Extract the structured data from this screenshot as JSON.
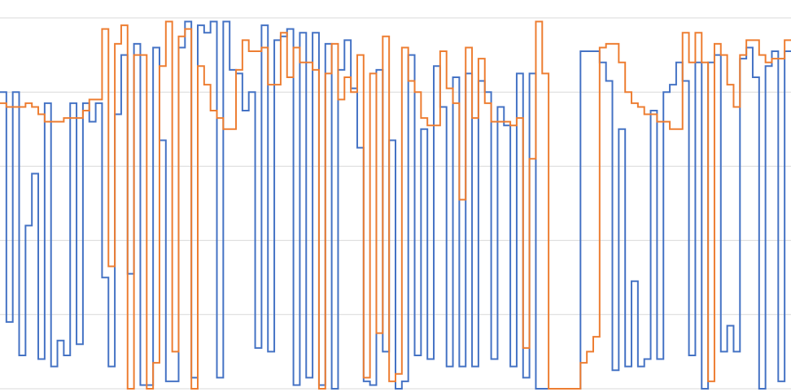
{
  "chart_data": {
    "type": "step",
    "ylim": [
      0,
      100
    ],
    "yticks": [
      0,
      20,
      40,
      60,
      80,
      100
    ],
    "grid": true,
    "y_tick_labels": false,
    "series": [
      {
        "color": "#4472c4",
        "values": [
          80,
          18,
          80,
          9,
          44,
          58,
          8,
          77,
          6,
          13,
          9,
          77,
          12,
          77,
          72,
          77,
          30,
          6,
          74,
          90,
          31,
          93,
          1,
          1,
          92,
          67,
          2,
          2,
          92,
          99,
          3,
          98,
          96,
          99,
          3,
          99,
          86,
          85,
          75,
          80,
          11,
          98,
          10,
          94,
          95,
          97,
          1,
          96,
          3,
          96,
          1,
          93,
          0,
          86,
          94,
          81,
          65,
          2,
          1,
          86,
          10,
          67,
          0,
          2,
          90,
          9,
          70,
          8,
          87,
          76,
          6,
          84,
          6,
          85,
          6,
          83,
          80,
          8,
          76,
          71,
          6,
          85,
          3,
          85,
          0,
          0,
          0,
          0,
          0,
          0,
          0,
          91,
          91,
          91,
          88,
          83,
          5,
          70,
          6,
          29,
          6,
          8,
          75,
          8,
          80,
          82,
          88,
          83,
          9,
          88,
          0,
          88,
          90,
          10,
          17,
          10,
          89,
          92,
          84,
          0,
          87,
          91,
          2,
          91
        ]
      },
      {
        "color": "#ed7d31",
        "values": [
          77,
          76,
          76,
          76,
          77,
          76,
          74,
          72,
          72,
          72,
          73,
          73,
          73,
          75,
          78,
          78,
          97,
          33,
          93,
          98,
          0,
          90,
          90,
          0,
          7,
          87,
          99,
          10,
          95,
          97,
          0,
          87,
          82,
          75,
          73,
          70,
          70,
          86,
          94,
          91,
          91,
          92,
          82,
          82,
          96,
          84,
          92,
          88,
          88,
          86,
          0,
          85,
          93,
          78,
          84,
          80,
          90,
          3,
          85,
          15,
          95,
          2,
          4,
          92,
          83,
          80,
          73,
          71,
          71,
          91,
          81,
          77,
          51,
          92,
          73,
          89,
          77,
          72,
          72,
          72,
          71,
          73,
          11,
          62,
          99,
          85,
          0,
          0,
          0,
          0,
          0,
          7,
          10,
          14,
          92,
          93,
          93,
          88,
          80,
          77,
          76,
          74,
          74,
          72,
          72,
          70,
          70,
          96,
          88,
          96,
          88,
          2,
          93,
          90,
          82,
          76,
          90,
          94,
          94,
          90,
          88,
          89,
          89,
          94
        ]
      }
    ]
  }
}
